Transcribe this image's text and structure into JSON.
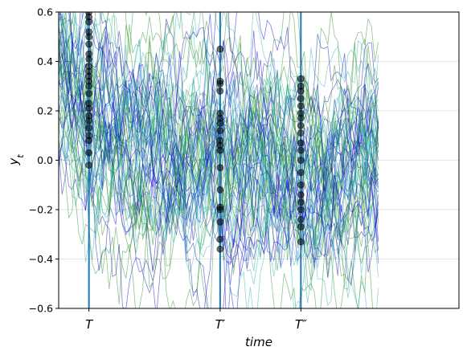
{
  "chart_data": {
    "type": "line",
    "title": "",
    "xlabel": "time",
    "ylabel": "y_t",
    "ylim": [
      -0.6,
      0.6
    ],
    "x_range": [
      0,
      100
    ],
    "yticks": [
      -0.6,
      -0.4,
      -0.2,
      0.0,
      0.2,
      0.4,
      0.6
    ],
    "ytick_labels": [
      "−0.6",
      "−0.4",
      "−0.2",
      "0.0",
      "0.2",
      "0.4",
      "0.6"
    ],
    "grid": "horizontal",
    "marked_times": [
      {
        "label": "T",
        "x": 14,
        "label_main": "T",
        "label_sup": ""
      },
      {
        "label": "T′",
        "x": 53,
        "label_main": "T",
        "label_sup": "′"
      },
      {
        "label": "T″",
        "x": 77,
        "label_main": "T",
        "label_sup": "″"
      }
    ],
    "process": {
      "description_free": true,
      "n_paths": 60,
      "n_steps": 101,
      "start_value_range": [
        0.5,
        1.0
      ],
      "mean_reversion": 0.9,
      "noise_sd": 0.1,
      "long_run_mean": 0.0,
      "colors": [
        "#0000cc",
        "#1f8b1f",
        "#20b2aa"
      ],
      "alpha": 0.5
    },
    "cross_sections": [
      {
        "time_label": "T",
        "values": [
          0.64,
          0.6,
          0.58,
          0.56,
          0.52,
          0.5,
          0.47,
          0.43,
          0.41,
          0.38,
          0.36,
          0.34,
          0.32,
          0.3,
          0.27,
          0.23,
          0.21,
          0.18,
          0.16,
          0.13,
          0.1,
          0.08,
          0.03,
          -0.02
        ]
      },
      {
        "time_label": "T′",
        "values": [
          0.45,
          0.32,
          0.31,
          0.28,
          0.19,
          0.17,
          0.15,
          0.12,
          0.08,
          0.06,
          0.04,
          -0.03,
          -0.12,
          -0.19,
          -0.2,
          -0.25,
          -0.32,
          -0.36
        ]
      },
      {
        "time_label": "T″",
        "values": [
          0.33,
          0.3,
          0.28,
          0.25,
          0.22,
          0.19,
          0.17,
          0.14,
          0.11,
          0.07,
          0.04,
          0.0,
          -0.05,
          -0.1,
          -0.14,
          -0.17,
          -0.2,
          -0.24,
          -0.27,
          -0.33
        ]
      }
    ],
    "colors": {
      "marker_line": "#1f77b4",
      "dot": "#000000",
      "grid": "#dddddd"
    }
  }
}
